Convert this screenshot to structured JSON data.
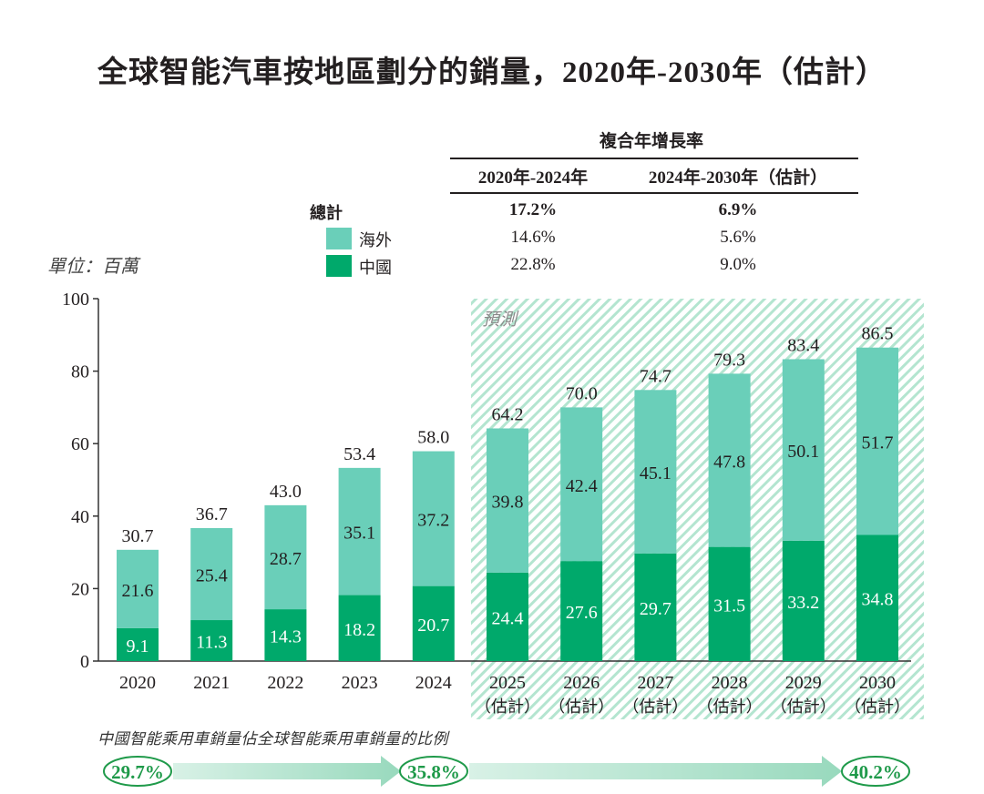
{
  "title": "全球智能汽車按地區劃分的銷量，2020年-2030年（估計）",
  "unit_label": "單位：百萬",
  "forecast_label": "預測",
  "colors": {
    "overseas": "#6acfb9",
    "china": "#00a96b",
    "hatch": "#9bdcc0",
    "ellipse": "#1f9a4a",
    "arrow": "#9fdcc1"
  },
  "cagr_table": {
    "header": "複合年增長率",
    "columns": [
      "2020年-2024年",
      "2024年-2030年（估計）"
    ],
    "rows": [
      {
        "label": "總計",
        "values": [
          "17.2%",
          "6.9%"
        ],
        "bold": true
      },
      {
        "label": "海外",
        "values": [
          "14.6%",
          "5.6%"
        ],
        "swatch": "overseas"
      },
      {
        "label": "中國",
        "values": [
          "22.8%",
          "9.0%"
        ],
        "swatch": "china"
      }
    ]
  },
  "chart_data": {
    "type": "bar",
    "stacked": true,
    "title": "全球智能汽車按地區劃分的銷量，2020年-2030年（估計）",
    "ylabel": "單位：百萬",
    "xlabel": "",
    "ylim": [
      0,
      100
    ],
    "yticks": [
      0,
      20,
      40,
      60,
      80,
      100
    ],
    "grid": false,
    "categories": [
      "2020",
      "2021",
      "2022",
      "2023",
      "2024",
      "2025",
      "2026",
      "2027",
      "2028",
      "2029",
      "2030"
    ],
    "category_sublabels": [
      "",
      "",
      "",
      "",
      "",
      "（估計）",
      "（估計）",
      "（估計）",
      "（估計）",
      "（估計）",
      "（估計）"
    ],
    "series": [
      {
        "name": "中國",
        "values": [
          9.1,
          11.3,
          14.3,
          18.2,
          20.7,
          24.4,
          27.6,
          29.7,
          31.5,
          33.2,
          34.8
        ]
      },
      {
        "name": "海外",
        "values": [
          21.6,
          25.4,
          28.7,
          35.1,
          37.2,
          39.8,
          42.4,
          45.1,
          47.8,
          50.1,
          51.7
        ]
      }
    ],
    "totals": [
      30.7,
      36.7,
      43.0,
      53.4,
      58.0,
      64.2,
      70.0,
      74.7,
      79.3,
      83.4,
      86.5
    ],
    "forecast_start_index": 5,
    "annotation": "預測",
    "legend": [
      "海外",
      "中國"
    ],
    "legend_position": "top"
  },
  "china_share": {
    "title": "中國智能乘用車銷量佔全球智能乘用車銷量的比例",
    "points": [
      {
        "year": "2020",
        "value": "29.7%"
      },
      {
        "year": "2024",
        "value": "35.8%"
      },
      {
        "year": "2030",
        "value": "40.2%"
      }
    ]
  }
}
